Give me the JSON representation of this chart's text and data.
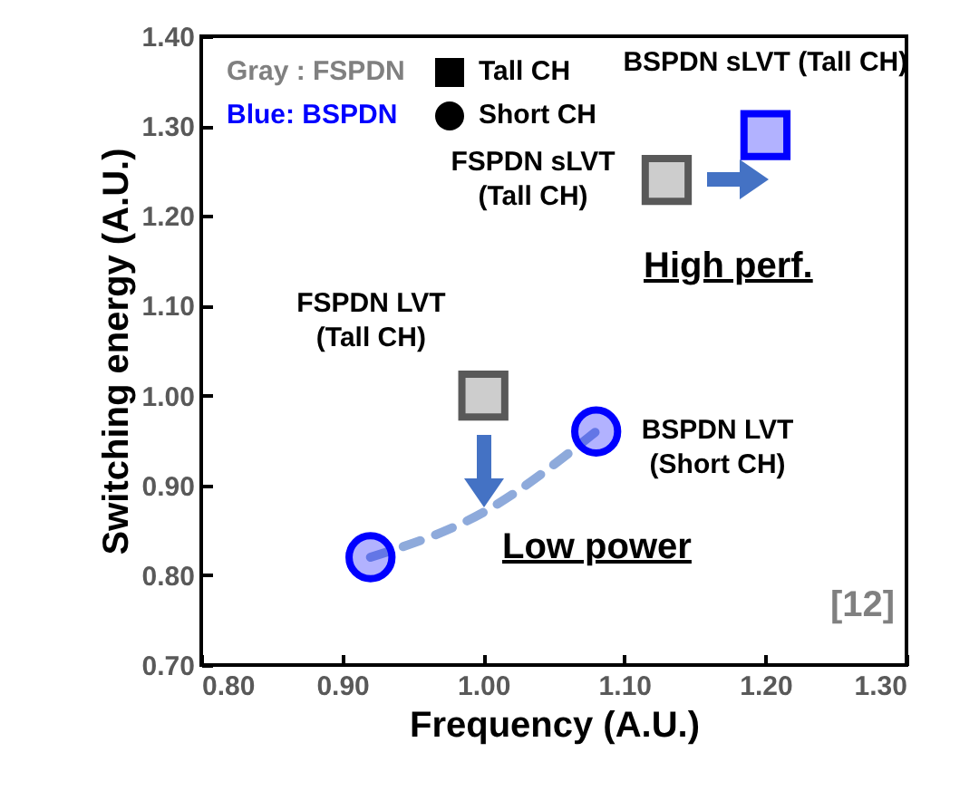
{
  "chart_data": {
    "type": "scatter",
    "xlabel": "Frequency (A.U.)",
    "ylabel": "Switching energy (A.U.)",
    "xlim": [
      0.8,
      1.3
    ],
    "ylim": [
      0.7,
      1.4
    ],
    "xticks": [
      {
        "value": 0.8,
        "label": "0.80"
      },
      {
        "value": 0.9,
        "label": "0.90"
      },
      {
        "value": 1.0,
        "label": "1.00"
      },
      {
        "value": 1.1,
        "label": "1.10"
      },
      {
        "value": 1.2,
        "label": "1.20"
      },
      {
        "value": 1.3,
        "label": "1.30"
      }
    ],
    "yticks": [
      {
        "value": 0.7,
        "label": "0.70"
      },
      {
        "value": 0.8,
        "label": "0.80"
      },
      {
        "value": 0.9,
        "label": "0.90"
      },
      {
        "value": 1.0,
        "label": "1.00"
      },
      {
        "value": 1.1,
        "label": "1.10"
      },
      {
        "value": 1.2,
        "label": "1.20"
      },
      {
        "value": 1.3,
        "label": "1.30"
      },
      {
        "value": 1.4,
        "label": "1.40"
      }
    ],
    "series": [
      {
        "type": "line",
        "line_style": "dashed",
        "color": "#8eaadb",
        "x": [
          0.92,
          1.0,
          1.08
        ],
        "values": [
          0.82,
          0.87,
          0.96
        ]
      },
      {
        "marker": "square",
        "color": "#595959",
        "x": [
          1.13,
          1.0
        ],
        "values": [
          1.24,
          1.0
        ]
      },
      {
        "marker": "square",
        "color": "#0000ff",
        "x": [
          1.2
        ],
        "values": [
          1.29
        ]
      },
      {
        "marker": "circle",
        "color": "#0000ff",
        "x": [
          0.92,
          1.08
        ],
        "values": [
          0.82,
          0.96
        ]
      }
    ],
    "annotations": [
      "Gray : FSPDN",
      "Blue: BSPDN",
      "Tall CH",
      "Short CH",
      {
        "text": "BSPDN sLVT (Tall CH)",
        "x": 1.2,
        "y": 1.29
      },
      {
        "text": "FSPDN sLVT\n(Tall CH)",
        "x": 1.13,
        "y": 1.24
      },
      {
        "text": "FSPDN LVT\n(Tall CH)",
        "x": 1.0,
        "y": 1.0
      },
      {
        "text": "BSPDN LVT\n(Short CH)",
        "x": 1.08,
        "y": 0.96
      },
      "High perf.",
      "Low power",
      "[12]"
    ]
  }
}
